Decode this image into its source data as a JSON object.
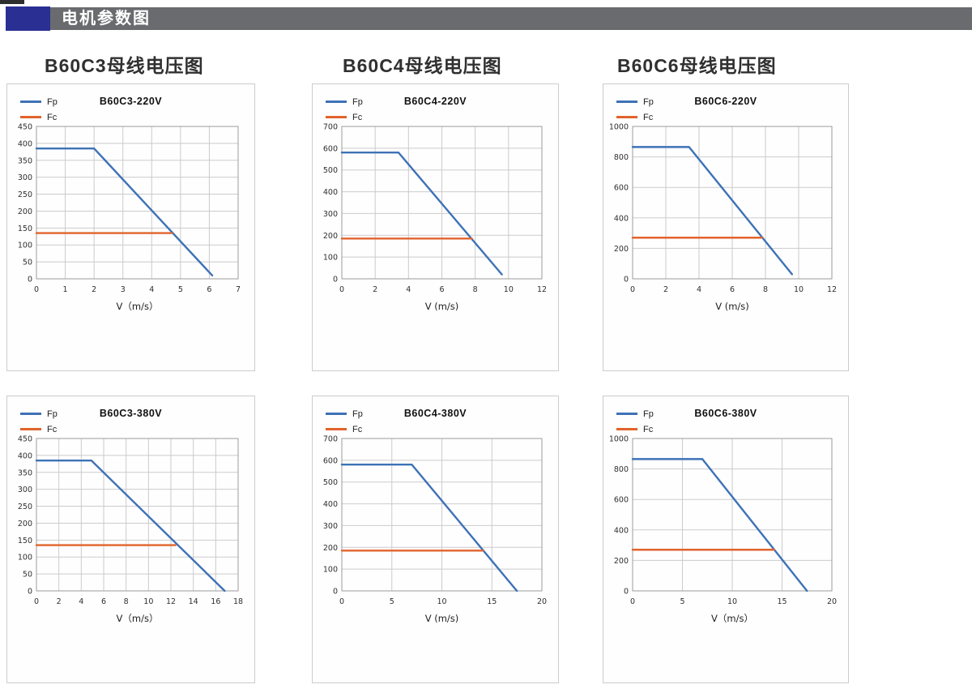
{
  "header": {
    "title": "电机参数图"
  },
  "columns": [
    {
      "label": "B60C3母线电压图"
    },
    {
      "label": "B60C4母线电压图"
    },
    {
      "label": "B60C6母线电压图"
    }
  ],
  "colors": {
    "fp": "#3e72b6",
    "fc": "#e2632c",
    "navy_accent": "#2a2f93",
    "header_bar": "#6a6b6f",
    "grid": "#cbcbcb",
    "plot_border": "#9c9c9c",
    "tick_text": "#2e2e2e",
    "axis_title_text": "#1d1d1d"
  },
  "chart_data": [
    {
      "type": "line",
      "title": "B60C3-220V",
      "xlabel": "V（m/s）",
      "xlim": [
        0,
        7
      ],
      "ylim": [
        0,
        450
      ],
      "xticks": [
        0,
        1,
        2,
        3,
        4,
        5,
        6,
        7
      ],
      "yticks": [
        0,
        50,
        100,
        150,
        200,
        250,
        300,
        350,
        400,
        450
      ],
      "grid": true,
      "legend_position": "top-left",
      "series": [
        {
          "name": "Fp",
          "color_key": "fp",
          "points": [
            [
              0,
              385
            ],
            [
              2,
              385
            ],
            [
              6.1,
              10
            ]
          ]
        },
        {
          "name": "Fc",
          "color_key": "fc",
          "points": [
            [
              0,
              135
            ],
            [
              4.7,
              135
            ]
          ]
        }
      ]
    },
    {
      "type": "line",
      "title": "B60C4-220V",
      "xlabel": "V (m/s)",
      "xlim": [
        0,
        12
      ],
      "ylim": [
        0,
        700
      ],
      "xticks": [
        0,
        2,
        4,
        6,
        8,
        10,
        12
      ],
      "yticks": [
        0,
        100,
        200,
        300,
        400,
        500,
        600,
        700
      ],
      "grid": true,
      "legend_position": "top-left",
      "series": [
        {
          "name": "Fp",
          "color_key": "fp",
          "points": [
            [
              0,
              580
            ],
            [
              3.4,
              580
            ],
            [
              9.6,
              20
            ]
          ]
        },
        {
          "name": "Fc",
          "color_key": "fc",
          "points": [
            [
              0,
              185
            ],
            [
              7.8,
              185
            ]
          ]
        }
      ]
    },
    {
      "type": "line",
      "title": "B60C6-220V",
      "xlabel": "V (m/s)",
      "xlim": [
        0,
        12
      ],
      "ylim": [
        0,
        1000
      ],
      "xticks": [
        0,
        2,
        4,
        6,
        8,
        10,
        12
      ],
      "yticks": [
        0,
        200,
        400,
        600,
        800,
        1000
      ],
      "grid": true,
      "legend_position": "top-left",
      "series": [
        {
          "name": "Fp",
          "color_key": "fp",
          "points": [
            [
              0,
              865
            ],
            [
              3.4,
              865
            ],
            [
              9.6,
              30
            ]
          ]
        },
        {
          "name": "Fc",
          "color_key": "fc",
          "points": [
            [
              0,
              270
            ],
            [
              7.8,
              270
            ]
          ]
        }
      ]
    },
    {
      "type": "line",
      "title": "B60C3-380V",
      "xlabel": "V（m/s）",
      "xlim": [
        0,
        18
      ],
      "ylim": [
        0,
        450
      ],
      "xticks": [
        0,
        2,
        4,
        6,
        8,
        10,
        12,
        14,
        16,
        18
      ],
      "yticks": [
        0,
        50,
        100,
        150,
        200,
        250,
        300,
        350,
        400,
        450
      ],
      "grid": true,
      "legend_position": "top-left",
      "series": [
        {
          "name": "Fp",
          "color_key": "fp",
          "points": [
            [
              0,
              385
            ],
            [
              4.9,
              385
            ],
            [
              16.8,
              0
            ]
          ]
        },
        {
          "name": "Fc",
          "color_key": "fc",
          "points": [
            [
              0,
              135
            ],
            [
              12.4,
              135
            ]
          ]
        }
      ]
    },
    {
      "type": "line",
      "title": "B60C4-380V",
      "xlabel": "V (m/s)",
      "xlim": [
        0,
        20
      ],
      "ylim": [
        0,
        700
      ],
      "xticks": [
        0,
        5,
        10,
        15,
        20
      ],
      "yticks": [
        0,
        100,
        200,
        300,
        400,
        500,
        600,
        700
      ],
      "grid": true,
      "legend_position": "top-left",
      "series": [
        {
          "name": "Fp",
          "color_key": "fp",
          "points": [
            [
              0,
              580
            ],
            [
              7,
              580
            ],
            [
              17.5,
              0
            ]
          ]
        },
        {
          "name": "Fc",
          "color_key": "fc",
          "points": [
            [
              0,
              185
            ],
            [
              14.1,
              185
            ]
          ]
        }
      ]
    },
    {
      "type": "line",
      "title": "B60C6-380V",
      "xlabel": "V（m/s）",
      "xlim": [
        0,
        20
      ],
      "ylim": [
        0,
        1000
      ],
      "xticks": [
        0,
        5,
        10,
        15,
        20
      ],
      "yticks": [
        0,
        200,
        400,
        600,
        800,
        1000
      ],
      "grid": true,
      "legend_position": "top-left",
      "series": [
        {
          "name": "Fp",
          "color_key": "fp",
          "points": [
            [
              0,
              865
            ],
            [
              7,
              865
            ],
            [
              17.5,
              0
            ]
          ]
        },
        {
          "name": "Fc",
          "color_key": "fc",
          "points": [
            [
              0,
              270
            ],
            [
              14.2,
              270
            ]
          ]
        }
      ]
    }
  ]
}
